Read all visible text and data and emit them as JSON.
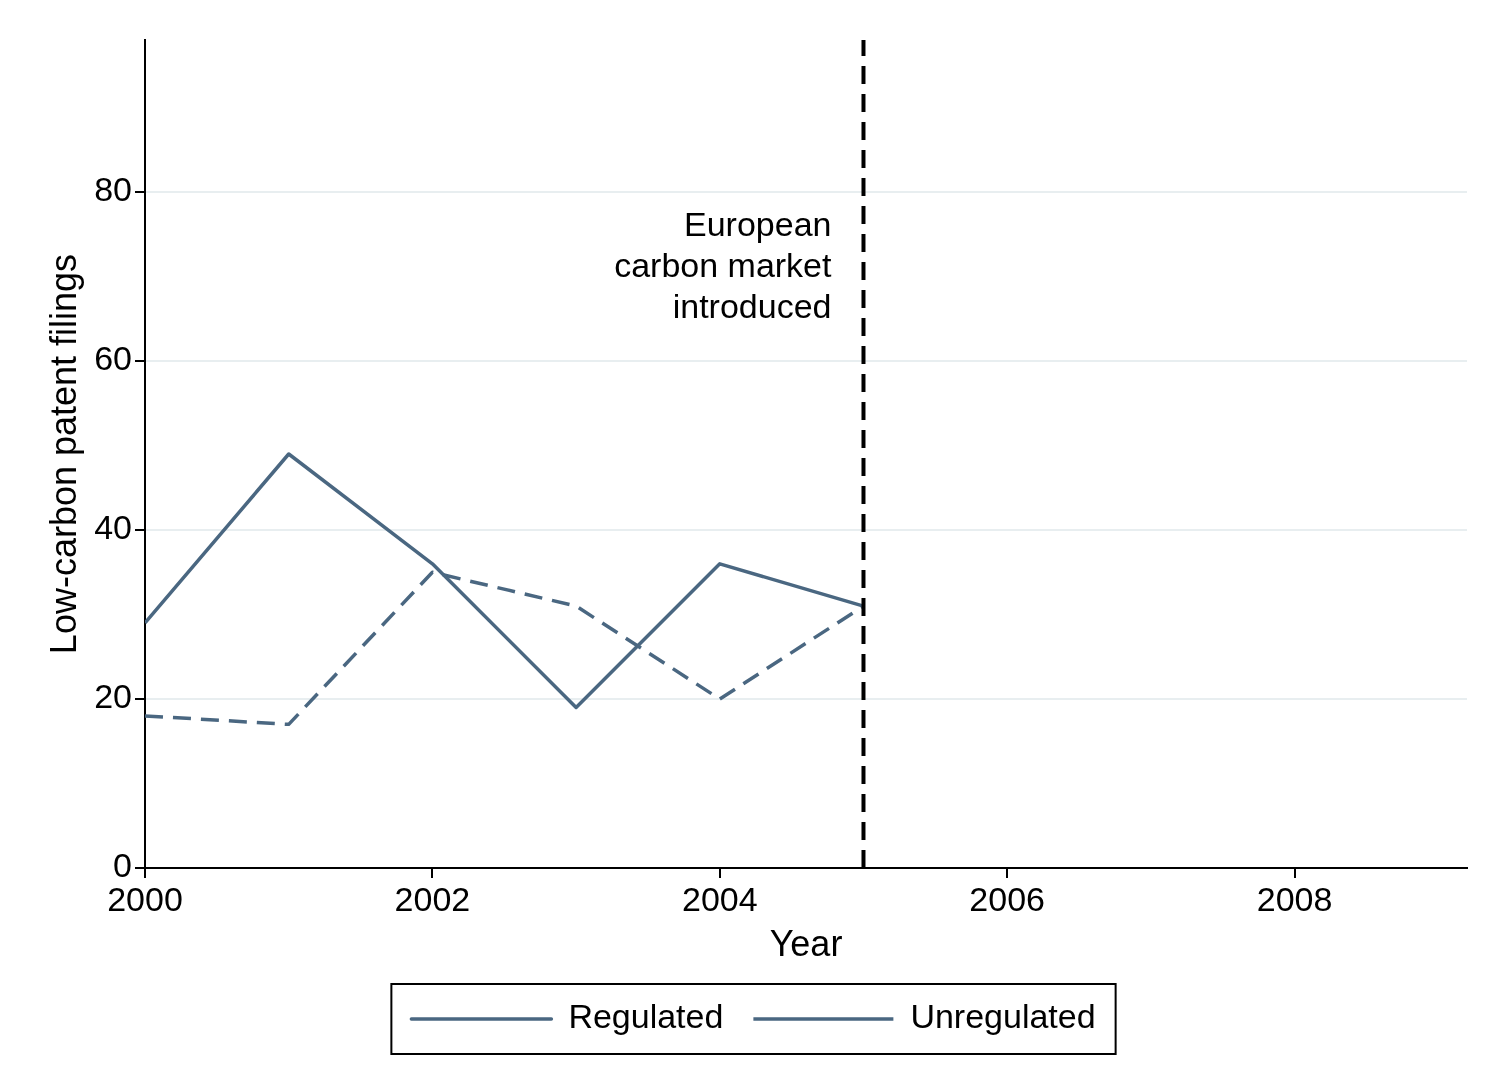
{
  "chart_data": {
    "type": "line",
    "xlabel": "Year",
    "ylabel": "Low-carbon patent filings",
    "x": [
      2000,
      2001,
      2002,
      2003,
      2004,
      2005
    ],
    "series": [
      {
        "name": "Regulated",
        "color": "#4a6781",
        "values": [
          29,
          49,
          36,
          19,
          36,
          31
        ],
        "line_style": "solid"
      },
      {
        "name": "Unregulated",
        "color": "#4a6781",
        "values": [
          18,
          17,
          35,
          31,
          20,
          31
        ],
        "line_style": "dashed"
      }
    ],
    "xlim": [
      2000,
      2009.2
    ],
    "xticks": [
      2000,
      2002,
      2004,
      2006,
      2008
    ],
    "ylim": [
      0,
      98
    ],
    "yticks": [
      0,
      20,
      40,
      60,
      80
    ],
    "grid": "y",
    "legend": "bottom",
    "marker": "none",
    "ref_lines": [
      {
        "axis": "x",
        "value": 2005,
        "label": "European\ncarbon market\nintroduced",
        "color": "#000000",
        "line_style": "dashed"
      }
    ]
  }
}
